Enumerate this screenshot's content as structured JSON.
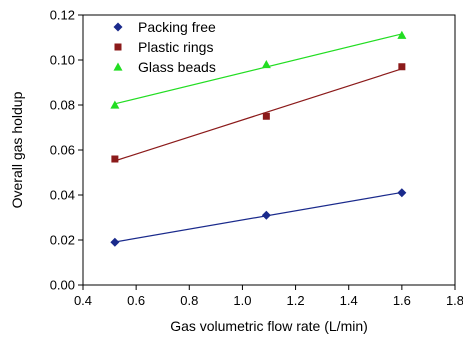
{
  "chart_data": {
    "type": "scatter",
    "title": "",
    "xlabel": "Gas volumetric flow rate (L/min)",
    "ylabel": "Overall gas holdup",
    "xlim": [
      0.4,
      1.8
    ],
    "ylim": [
      0.0,
      0.12
    ],
    "xticks": [
      "0.4",
      "0.6",
      "0.8",
      "1.0",
      "1.2",
      "1.4",
      "1.6",
      "1.8"
    ],
    "yticks": [
      "0.00",
      "0.02",
      "0.04",
      "0.06",
      "0.08",
      "0.10",
      "0.12"
    ],
    "grid": false,
    "legend_position": "top-left",
    "series": [
      {
        "name": "Packing free",
        "marker": "diamond",
        "color": "#1a2a8c",
        "line_color": "#1a2a8c",
        "x": [
          0.52,
          1.09,
          1.6
        ],
        "y": [
          0.019,
          0.031,
          0.041
        ]
      },
      {
        "name": "Plastic rings",
        "marker": "square",
        "color": "#8b1a1a",
        "line_color": "#8b1a1a",
        "x": [
          0.52,
          1.09,
          1.6
        ],
        "y": [
          0.056,
          0.075,
          0.097
        ]
      },
      {
        "name": "Glass beads",
        "marker": "triangle",
        "color": "#22dd22",
        "line_color": "#22dd22",
        "x": [
          0.52,
          1.09,
          1.6
        ],
        "y": [
          0.08,
          0.098,
          0.111
        ]
      }
    ]
  }
}
